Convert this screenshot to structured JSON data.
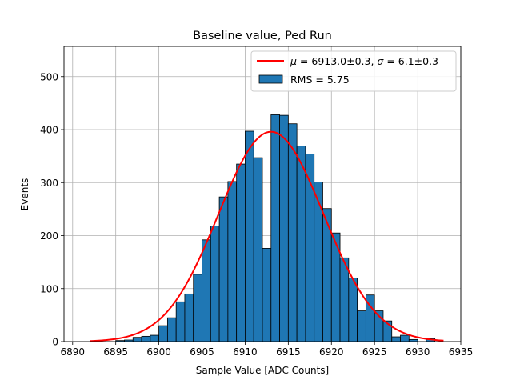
{
  "chart_data": {
    "type": "bar",
    "title": "Baseline value, Ped Run",
    "xlabel": "Sample Value [ADC Counts]",
    "ylabel": "Events",
    "xlim": [
      6889,
      6935
    ],
    "ylim": [
      0,
      557
    ],
    "xticks": [
      6890,
      6895,
      6900,
      6905,
      6910,
      6915,
      6920,
      6925,
      6930,
      6935
    ],
    "yticks": [
      0,
      100,
      200,
      300,
      400,
      500
    ],
    "grid": true,
    "legend_position": "top-right",
    "bin_width": 1,
    "bin_starts": [
      6892,
      6893,
      6894,
      6895,
      6896,
      6897,
      6898,
      6899,
      6900,
      6901,
      6902,
      6903,
      6904,
      6905,
      6906,
      6907,
      6908,
      6909,
      6910,
      6911,
      6912,
      6913,
      6914,
      6915,
      6916,
      6917,
      6918,
      6919,
      6920,
      6921,
      6922,
      6923,
      6924,
      6925,
      6926,
      6927,
      6928,
      6929,
      6930,
      6931,
      6932
    ],
    "counts": [
      0,
      0,
      0,
      2,
      3,
      8,
      10,
      12,
      30,
      45,
      75,
      90,
      127,
      192,
      218,
      273,
      302,
      335,
      397,
      347,
      176,
      428,
      427,
      411,
      369,
      354,
      301,
      251,
      205,
      158,
      120,
      58,
      88,
      58,
      39,
      9,
      12,
      4,
      0,
      6,
      0
    ],
    "series": [
      {
        "name": "RMS = 5.75",
        "kind": "histogram",
        "fill_color": "#1f77b4",
        "edge_color": "#000000"
      },
      {
        "name": "$\\mu = 6913.0 \\pm 0.3$, $\\sigma = 6.1 \\pm 0.3$",
        "kind": "gaussian-fit",
        "color": "#ff0000",
        "mu": 6913.0,
        "sigma": 6.1,
        "amplitude": 396,
        "x_range": [
          6892,
          6933
        ]
      }
    ]
  },
  "legend": {
    "fit_label_parts": {
      "mu_symbol": "μ",
      "mu_text": " = 6913.0±0.3, ",
      "sigma_symbol": "σ",
      "sigma_text": " = 6.1±0.3"
    },
    "hist_label": "RMS = 5.75"
  }
}
